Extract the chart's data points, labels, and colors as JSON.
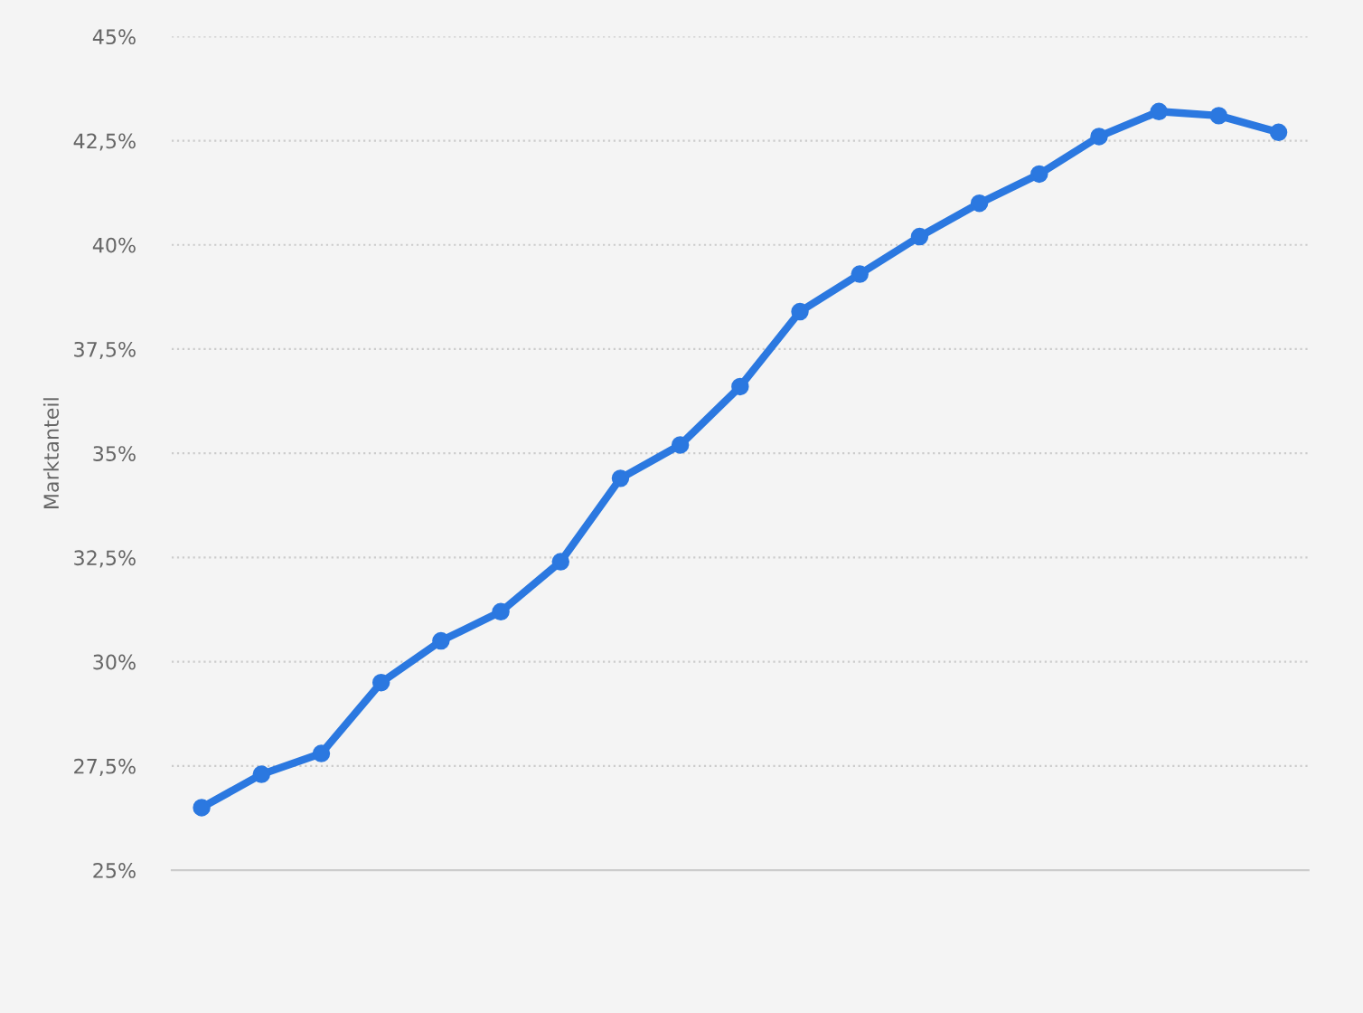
{
  "chart_data": {
    "type": "line",
    "ylabel": "Marktanteil",
    "categories": [
      null,
      null,
      null,
      null,
      null,
      null,
      null,
      null,
      null,
      null,
      null,
      null,
      null,
      null,
      null,
      null,
      null,
      null,
      null
    ],
    "series": [
      {
        "color": "#2b78e0",
        "values": [
          26.5,
          27.3,
          27.8,
          29.5,
          30.5,
          31.2,
          32.4,
          34.4,
          35.2,
          36.6,
          38.4,
          39.3,
          40.2,
          41.0,
          41.7,
          42.6,
          43.2,
          43.1,
          42.7
        ]
      }
    ],
    "ylim": [
      25,
      45
    ],
    "yticks": [
      {
        "value": 25,
        "label": "25%"
      },
      {
        "value": 27.5,
        "label": "27,5%"
      },
      {
        "value": 30,
        "label": "30%"
      },
      {
        "value": 32.5,
        "label": "32,5%"
      },
      {
        "value": 35,
        "label": "35%"
      },
      {
        "value": 37.5,
        "label": "37,5%"
      },
      {
        "value": 40,
        "label": "40%"
      },
      {
        "value": 42.5,
        "label": "42,5%"
      },
      {
        "value": 45,
        "label": "45%"
      }
    ],
    "grid": "y",
    "marker": "circle",
    "line_style": "solid"
  }
}
